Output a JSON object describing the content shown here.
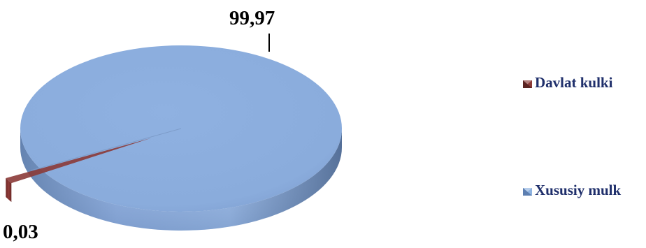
{
  "chart_data": {
    "type": "pie",
    "title": "",
    "categories": [
      "Davlat kulki",
      "Xususiy mulk"
    ],
    "values": [
      0.03,
      99.97
    ],
    "value_labels": [
      "0,03",
      "99,97"
    ],
    "colors": [
      "#8b3a37",
      "#8fb3e0"
    ],
    "legend_position": "right",
    "three_d": true,
    "exploded_slice": "Davlat kulki"
  }
}
